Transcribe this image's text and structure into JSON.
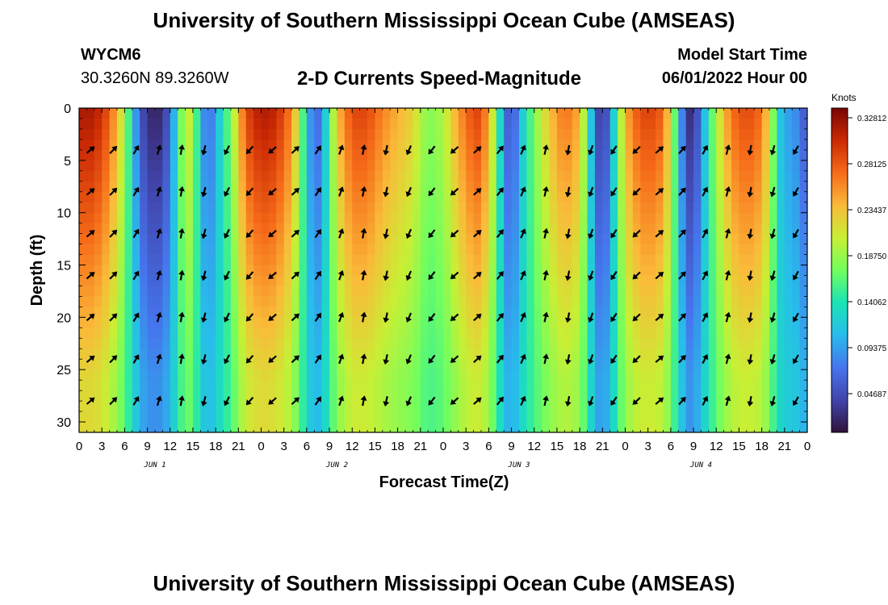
{
  "header": {
    "title": "University of Southern Mississippi Ocean Cube (AMSEAS)",
    "station_id": "WYCM6",
    "coords": "30.3260N  89.3260W",
    "subtitle": "2-D Currents Speed-Magnitude",
    "model_start_label": "Model Start Time",
    "model_start_value": "06/01/2022 Hour 00"
  },
  "footer": {
    "title": "University of Southern Mississippi Ocean Cube (AMSEAS)"
  },
  "chart_data": {
    "type": "heatmap",
    "title": "2-D Currents Speed-Magnitude",
    "xlabel": "Forecast Time(Z)",
    "ylabel": "Depth (ft)",
    "xlim": [
      0,
      96
    ],
    "ylim": [
      31,
      0
    ],
    "x_tick_labels": [
      "0",
      "3",
      "6",
      "9",
      "12",
      "15",
      "18",
      "21",
      "0",
      "3",
      "6",
      "9",
      "12",
      "15",
      "18",
      "21",
      "0",
      "3",
      "6",
      "9",
      "12",
      "15",
      "18",
      "21",
      "0",
      "3",
      "6",
      "9",
      "12",
      "15",
      "18",
      "21",
      "0"
    ],
    "day_labels": [
      "JUN 1",
      "JUN 2",
      "JUN 3",
      "JUN 4"
    ],
    "y_ticks": [
      0,
      5,
      10,
      15,
      20,
      25,
      30
    ],
    "colorbar": {
      "label": "Knots",
      "ticks": [
        "0.32812",
        "0.28125",
        "0.23437",
        "0.18750",
        "0.14062",
        "0.09375",
        "0.04687"
      ],
      "range": [
        0,
        0.35
      ]
    },
    "arrow_depths": [
      4,
      8,
      12,
      16,
      20,
      24,
      28
    ],
    "arrow_hours": [
      0,
      3,
      6,
      9,
      12,
      15,
      18,
      21,
      24,
      27,
      30,
      33,
      36,
      39,
      42,
      45,
      48,
      51,
      54,
      57,
      60,
      63,
      66,
      69,
      72,
      75,
      78,
      81,
      84,
      87,
      90,
      93
    ],
    "surface_speed_profile": {
      "hours": [
        0,
        2,
        4,
        6,
        7,
        8,
        9,
        10,
        11,
        12,
        13,
        14,
        15,
        16,
        17,
        18,
        19,
        20,
        21,
        22,
        24,
        26,
        28,
        29,
        30,
        31,
        32,
        33,
        34,
        36,
        38,
        40,
        42,
        44,
        46,
        48,
        50,
        52,
        53,
        54,
        55,
        56,
        57,
        58,
        60,
        62,
        64,
        66,
        67,
        68,
        69,
        70,
        72,
        74,
        76,
        77,
        78,
        79,
        80,
        81,
        82,
        84,
        86,
        88,
        90,
        91,
        92,
        93,
        94,
        95,
        96
      ],
      "knots": [
        0.33,
        0.33,
        0.29,
        0.2,
        0.12,
        0.05,
        0.02,
        0.01,
        0.02,
        0.06,
        0.14,
        0.22,
        0.2,
        0.11,
        0.05,
        0.1,
        0.14,
        0.18,
        0.24,
        0.3,
        0.33,
        0.32,
        0.27,
        0.2,
        0.12,
        0.05,
        0.08,
        0.16,
        0.24,
        0.3,
        0.3,
        0.27,
        0.25,
        0.23,
        0.18,
        0.2,
        0.26,
        0.3,
        0.3,
        0.25,
        0.18,
        0.08,
        0.03,
        0.1,
        0.18,
        0.24,
        0.28,
        0.25,
        0.16,
        0.06,
        0.01,
        0.08,
        0.25,
        0.3,
        0.3,
        0.28,
        0.22,
        0.12,
        0.03,
        0.01,
        0.08,
        0.2,
        0.28,
        0.3,
        0.28,
        0.22,
        0.14,
        0.08,
        0.1,
        0.06,
        0.05
      ]
    }
  }
}
